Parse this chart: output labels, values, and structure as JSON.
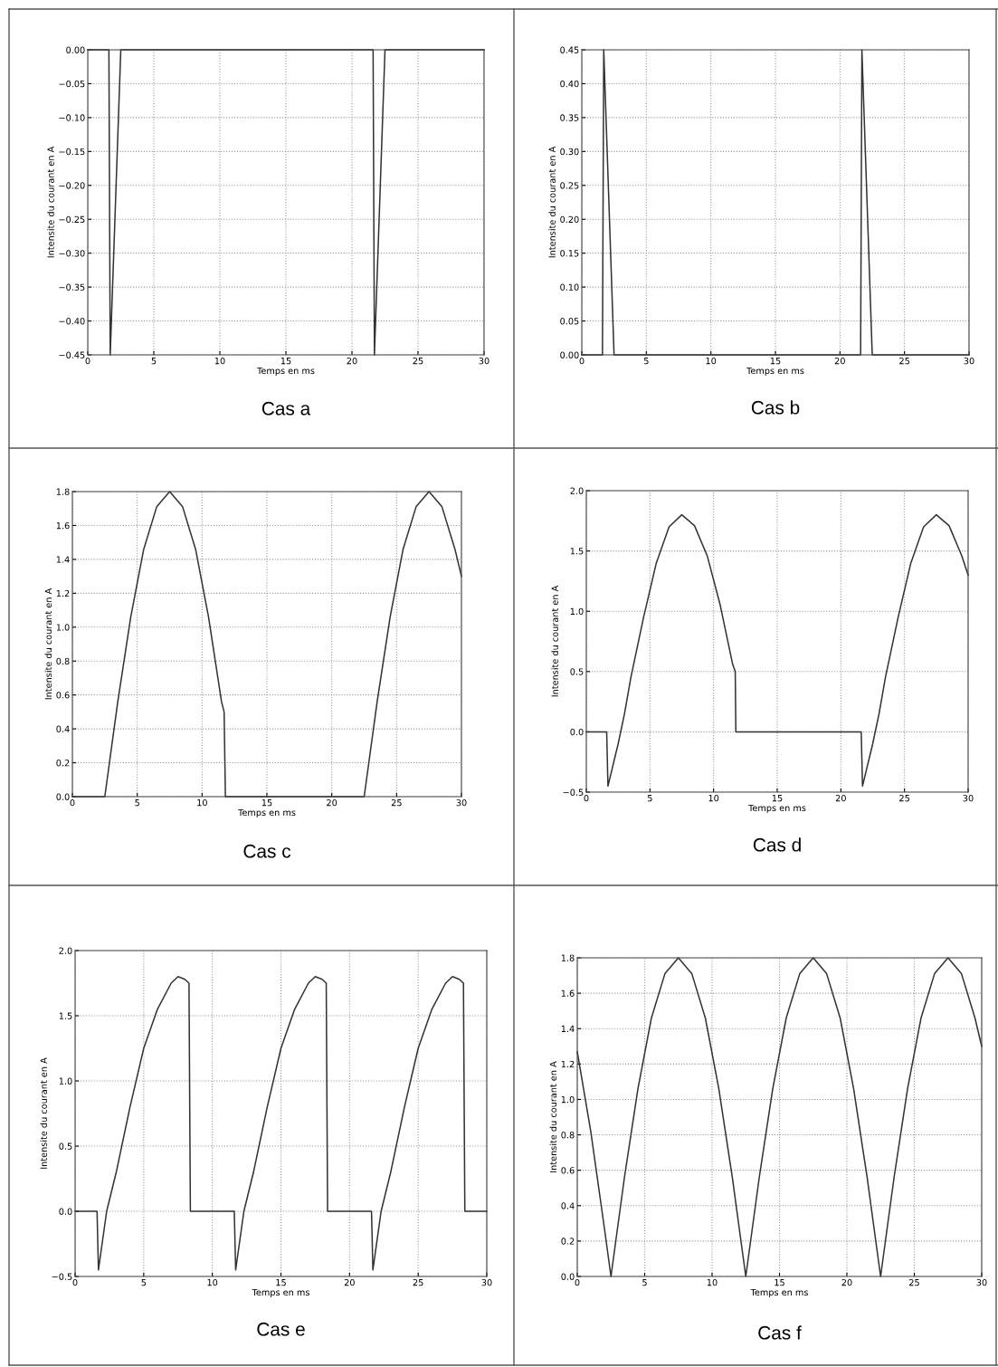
{
  "chart_data": [
    {
      "type": "line",
      "title": "Cas a",
      "xlabel": "Temps en ms",
      "ylabel": "Intensite du courant en A",
      "grid": true,
      "xlim": [
        0,
        30
      ],
      "xticks": [
        0,
        5,
        10,
        15,
        20,
        25,
        30
      ],
      "ylim": [
        -0.45,
        0
      ],
      "yticks": [
        {
          "value": 0,
          "label": "0.00"
        },
        {
          "value": -0.05,
          "label": "−0.05"
        },
        {
          "value": -0.1,
          "label": "−0.10"
        },
        {
          "value": -0.15,
          "label": "−0.15"
        },
        {
          "value": -0.2,
          "label": "−0.20"
        },
        {
          "value": -0.25,
          "label": "−0.25"
        },
        {
          "value": -0.3,
          "label": "−0.30"
        },
        {
          "value": -0.35,
          "label": "−0.35"
        },
        {
          "value": -0.4,
          "label": "−0.40"
        },
        {
          "value": -0.45,
          "label": "−0.45"
        }
      ],
      "series": [
        {
          "color": "#333333",
          "x": [
            0,
            1.6,
            1.7,
            2.5,
            21.6,
            21.7,
            22.5,
            30
          ],
          "values": [
            0,
            0,
            -0.45,
            0,
            0,
            -0.45,
            0,
            0
          ]
        }
      ]
    },
    {
      "type": "line",
      "title": "Cas b",
      "xlabel": "Temps en ms",
      "ylabel": "Intensite du courant en A",
      "grid": true,
      "xlim": [
        0,
        30
      ],
      "xticks": [
        0,
        5,
        10,
        15,
        20,
        25,
        30
      ],
      "ylim": [
        0,
        0.45
      ],
      "yticks": [
        {
          "value": 0,
          "label": "0.00"
        },
        0.05,
        {
          "value": 0.1,
          "label": "0.10"
        },
        0.15,
        {
          "value": 0.2,
          "label": "0.20"
        },
        0.25,
        {
          "value": 0.3,
          "label": "0.30"
        },
        0.35,
        {
          "value": 0.4,
          "label": "0.40"
        },
        0.45
      ],
      "series": [
        {
          "color": "#333333",
          "x": [
            0,
            1.6,
            1.7,
            2.5,
            21.6,
            21.7,
            22.5,
            30
          ],
          "values": [
            0,
            0,
            0.45,
            0,
            0,
            0.45,
            0,
            0
          ]
        }
      ]
    },
    {
      "type": "line",
      "title": "Cas c",
      "xlabel": "Temps en ms",
      "ylabel": "Intensite du courant en A",
      "grid": true,
      "xlim": [
        0,
        30
      ],
      "xticks": [
        0,
        5,
        10,
        15,
        20,
        25,
        30
      ],
      "ylim": [
        0,
        1.8
      ],
      "yticks": [
        {
          "value": 0,
          "label": "0.0"
        },
        0.2,
        0.4,
        0.6,
        0.8,
        {
          "value": 1,
          "label": "1.0"
        },
        1.2,
        1.4,
        1.6,
        1.8
      ],
      "series": [
        {
          "color": "#333333",
          "x": [
            0,
            2.5,
            3.5,
            4.5,
            5.5,
            6.5,
            7.5,
            8.5,
            9.5,
            10.5,
            11.5,
            11.7,
            11.8,
            22.5,
            23.5,
            24.5,
            25.5,
            26.5,
            27.5,
            28.5,
            29.5,
            30
          ],
          "values": [
            0,
            0,
            0.56,
            1.06,
            1.46,
            1.71,
            1.8,
            1.71,
            1.46,
            1.06,
            0.56,
            0.5,
            0,
            0,
            0.56,
            1.06,
            1.46,
            1.71,
            1.8,
            1.71,
            1.46,
            1.3
          ]
        }
      ]
    },
    {
      "type": "line",
      "title": "Cas d",
      "xlabel": "Temps en ms",
      "ylabel": "Intensite du courant en A",
      "grid": true,
      "xlim": [
        0,
        30
      ],
      "xticks": [
        0,
        5,
        10,
        15,
        20,
        25,
        30
      ],
      "ylim": [
        -0.5,
        2.0
      ],
      "yticks": [
        {
          "value": -0.5,
          "label": "−0.5"
        },
        {
          "value": 0,
          "label": "0.0"
        },
        0.5,
        {
          "value": 1,
          "label": "1.0"
        },
        1.5,
        {
          "value": 2,
          "label": "2.0"
        }
      ],
      "series": [
        {
          "color": "#333333",
          "x": [
            0,
            1.6,
            1.7,
            2.5,
            3,
            3.5,
            4.5,
            5.5,
            6.5,
            7.5,
            8.5,
            9.5,
            10.5,
            11.5,
            11.7,
            11.75,
            21.6,
            21.7,
            22.5,
            23,
            23.5,
            24.5,
            25.5,
            26.5,
            27.5,
            28.5,
            29.5,
            30
          ],
          "values": [
            0,
            0,
            -0.45,
            -0.1,
            0.15,
            0.45,
            0.95,
            1.4,
            1.7,
            1.8,
            1.71,
            1.46,
            1.06,
            0.56,
            0.5,
            0,
            0,
            -0.45,
            -0.1,
            0.15,
            0.45,
            0.95,
            1.4,
            1.7,
            1.8,
            1.71,
            1.46,
            1.3
          ]
        }
      ]
    },
    {
      "type": "line",
      "title": "Cas e",
      "xlabel": "Temps en ms",
      "ylabel": "Intensite du courant en A",
      "grid": true,
      "xlim": [
        0,
        30
      ],
      "xticks": [
        0,
        5,
        10,
        15,
        20,
        25,
        30
      ],
      "ylim": [
        -0.5,
        2.0
      ],
      "yticks": [
        {
          "value": -0.5,
          "label": "−0.5"
        },
        {
          "value": 0,
          "label": "0.0"
        },
        0.5,
        {
          "value": 1,
          "label": "1.0"
        },
        1.5,
        {
          "value": 2,
          "label": "2.0"
        }
      ],
      "series": [
        {
          "color": "#333333",
          "x": [
            0,
            1.6,
            1.7,
            2.3,
            3,
            4,
            5,
            6,
            7,
            7.5,
            8,
            8.3,
            8.4,
            11.6,
            11.7,
            12.3,
            13,
            14,
            15,
            16,
            17,
            17.5,
            18,
            18.3,
            18.4,
            21.6,
            21.7,
            22.3,
            23,
            24,
            25,
            26,
            27,
            27.5,
            28,
            28.3,
            28.4,
            30
          ],
          "values": [
            0,
            0,
            -0.45,
            0,
            0.3,
            0.8,
            1.25,
            1.55,
            1.75,
            1.8,
            1.78,
            1.75,
            0,
            0,
            -0.45,
            0,
            0.3,
            0.8,
            1.25,
            1.55,
            1.75,
            1.8,
            1.78,
            1.75,
            0,
            0,
            -0.45,
            0,
            0.3,
            0.8,
            1.25,
            1.55,
            1.75,
            1.8,
            1.78,
            1.75,
            0,
            0
          ]
        }
      ]
    },
    {
      "type": "line",
      "title": "Cas f",
      "xlabel": "Temps en ms",
      "ylabel": "Intensite du courant en A",
      "grid": true,
      "xlim": [
        0,
        30
      ],
      "xticks": [
        0,
        5,
        10,
        15,
        20,
        25,
        30
      ],
      "ylim": [
        0,
        1.8
      ],
      "yticks": [
        {
          "value": 0,
          "label": "0.0"
        },
        0.2,
        0.4,
        0.6,
        0.8,
        {
          "value": 1,
          "label": "1.0"
        },
        1.2,
        1.4,
        1.6,
        1.8
      ],
      "series": [
        {
          "color": "#333333",
          "x": [
            0,
            1,
            2,
            2.5,
            3.5,
            4.5,
            5.5,
            6.5,
            7.5,
            8.5,
            9.5,
            10.5,
            11.5,
            12.5,
            13.5,
            14.5,
            15.5,
            16.5,
            17.5,
            18.5,
            19.5,
            20.5,
            21.5,
            22.5,
            23.5,
            24.5,
            25.5,
            26.5,
            27.5,
            28.5,
            29.5,
            30
          ],
          "values": [
            1.27,
            0.82,
            0.28,
            0,
            0.56,
            1.06,
            1.46,
            1.71,
            1.8,
            1.71,
            1.46,
            1.06,
            0.56,
            0,
            0.56,
            1.06,
            1.46,
            1.71,
            1.8,
            1.71,
            1.46,
            1.06,
            0.56,
            0,
            0.56,
            1.06,
            1.46,
            1.71,
            1.8,
            1.71,
            1.46,
            1.3
          ]
        }
      ]
    }
  ]
}
